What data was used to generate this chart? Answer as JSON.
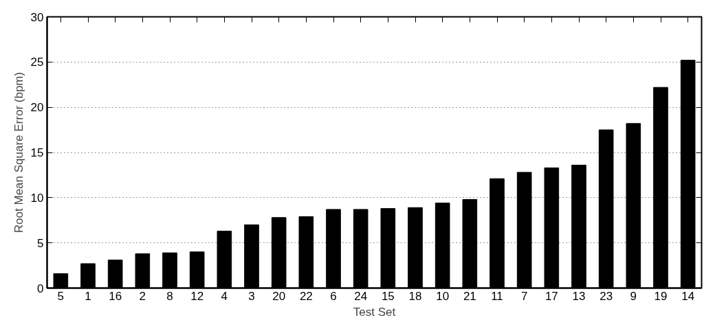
{
  "chart_data": {
    "type": "bar",
    "xlabel": "Test Set",
    "ylabel": "Root Mean Square Error (bpm)",
    "categories": [
      "5",
      "1",
      "16",
      "2",
      "8",
      "12",
      "4",
      "3",
      "20",
      "22",
      "6",
      "24",
      "15",
      "18",
      "10",
      "21",
      "11",
      "7",
      "17",
      "13",
      "23",
      "9",
      "19",
      "14"
    ],
    "values": [
      1.6,
      2.7,
      3.1,
      3.8,
      3.9,
      4.0,
      6.3,
      7.0,
      7.8,
      7.9,
      8.7,
      8.7,
      8.8,
      8.9,
      9.4,
      9.8,
      12.1,
      12.8,
      13.3,
      13.6,
      17.5,
      18.2,
      22.2,
      25.2
    ],
    "color": "#000000",
    "ylim": [
      0,
      30
    ],
    "yticks": [
      0,
      5,
      10,
      15,
      20,
      25,
      30
    ],
    "grid": "y"
  }
}
